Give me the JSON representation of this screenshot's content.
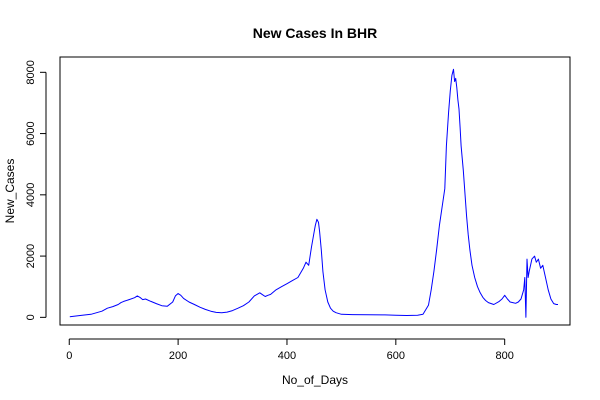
{
  "chart_data": {
    "type": "line",
    "title": "New Cases In BHR",
    "xlabel": "No_of_Days",
    "ylabel": "New_Cases",
    "xlim": [
      -17,
      920
    ],
    "ylim": [
      -250,
      8500
    ],
    "x_ticks": [
      0,
      200,
      400,
      600,
      800
    ],
    "y_ticks": [
      0,
      2000,
      4000,
      6000,
      8000
    ],
    "grid": false,
    "legend": "none",
    "series_color": "#0000ff",
    "series": [
      {
        "x": [
          1,
          20,
          40,
          60,
          70,
          80,
          90,
          95,
          100,
          110,
          120,
          125,
          130,
          135,
          140,
          150,
          160,
          170,
          180,
          190,
          195,
          200,
          205,
          210,
          220,
          230,
          240,
          250,
          260,
          270,
          280,
          290,
          300,
          310,
          320,
          330,
          340,
          350,
          355,
          360,
          365,
          370,
          380,
          390,
          400,
          410,
          420,
          430,
          435,
          440,
          445,
          450,
          452,
          455,
          458,
          460,
          463,
          466,
          470,
          475,
          480,
          485,
          490,
          500,
          520,
          550,
          580,
          600,
          620,
          640,
          650,
          660,
          665,
          670,
          675,
          680,
          685,
          690,
          693,
          697,
          700,
          703,
          706,
          708,
          710,
          712,
          714,
          716,
          718,
          720,
          722,
          724,
          726,
          728,
          730,
          733,
          736,
          740,
          745,
          750,
          755,
          760,
          765,
          770,
          780,
          790,
          795,
          800,
          805,
          810,
          815,
          820,
          825,
          830,
          835,
          837,
          839,
          841,
          843,
          845,
          850,
          855,
          858,
          862,
          866,
          870,
          875,
          880,
          885,
          890,
          895,
          898
        ],
        "values": [
          20,
          60,
          100,
          200,
          300,
          350,
          420,
          480,
          520,
          580,
          640,
          700,
          650,
          580,
          600,
          520,
          450,
          380,
          360,
          500,
          700,
          780,
          720,
          620,
          500,
          420,
          330,
          260,
          200,
          160,
          150,
          170,
          220,
          300,
          380,
          500,
          700,
          800,
          740,
          680,
          720,
          750,
          900,
          1000,
          1100,
          1200,
          1300,
          1600,
          1800,
          1700,
          2300,
          2800,
          3000,
          3200,
          3100,
          2800,
          2200,
          1500,
          900,
          500,
          300,
          200,
          150,
          100,
          90,
          85,
          80,
          70,
          60,
          70,
          100,
          400,
          900,
          1500,
          2200,
          3000,
          3600,
          4200,
          5600,
          6700,
          7400,
          7900,
          8100,
          7700,
          7800,
          7500,
          7100,
          6800,
          6200,
          5600,
          5200,
          4800,
          4300,
          3800,
          3300,
          2700,
          2200,
          1700,
          1300,
          1000,
          800,
          650,
          550,
          480,
          420,
          520,
          600,
          720,
          600,
          500,
          480,
          460,
          500,
          600,
          900,
          1300,
          0,
          1900,
          1300,
          1500,
          1900,
          2000,
          1800,
          1900,
          1600,
          1700,
          1300,
          900,
          600,
          450,
          420,
          420
        ]
      }
    ]
  }
}
